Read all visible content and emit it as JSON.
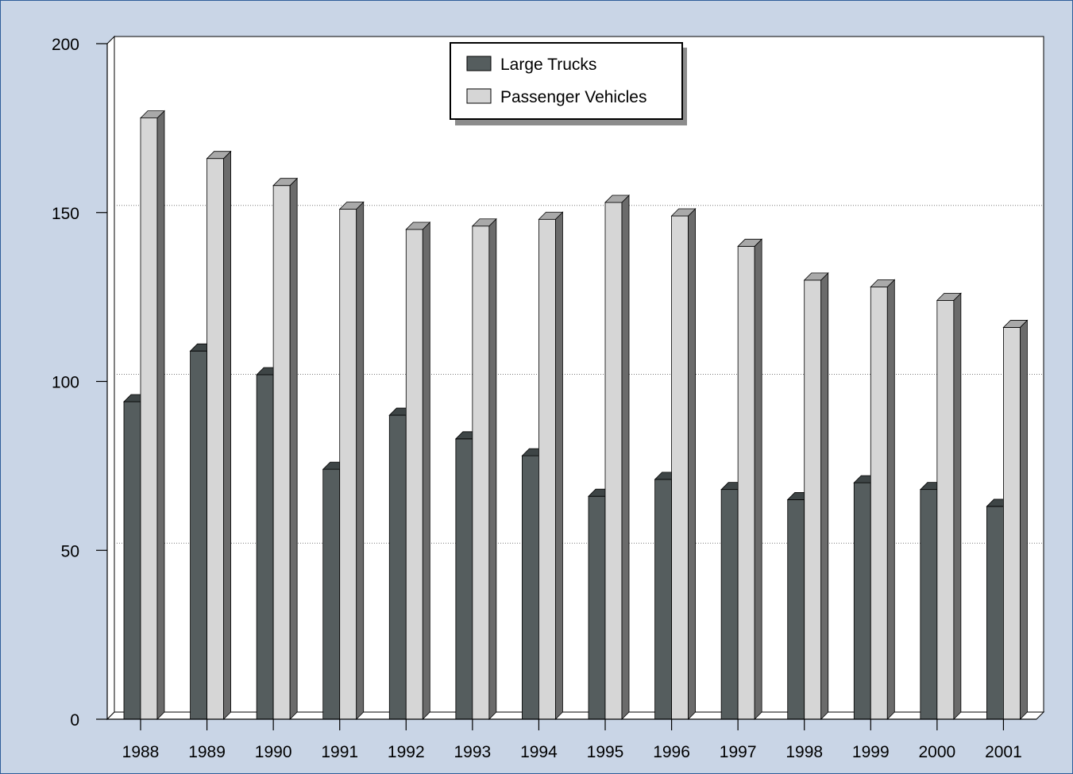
{
  "colors": {
    "background": "#c9d5e6",
    "border": "#2f5d9a",
    "plot_bg": "#ffffff",
    "axis": "#000000",
    "grid": "#7a7a7a"
  },
  "chart_data": {
    "type": "bar",
    "style": "3d-clustered",
    "categories": [
      "1988",
      "1989",
      "1990",
      "1991",
      "1992",
      "1993",
      "1994",
      "1995",
      "1996",
      "1997",
      "1998",
      "1999",
      "2000",
      "2001"
    ],
    "series": [
      {
        "name": "Large Trucks",
        "colors": {
          "front": "#555d5e",
          "top": "#3e4546",
          "side": "#2b3031"
        },
        "values": [
          94,
          109,
          102,
          74,
          90,
          83,
          78,
          66,
          71,
          68,
          65,
          70,
          68,
          63
        ]
      },
      {
        "name": "Passenger Vehicles",
        "colors": {
          "front": "#d6d6d6",
          "top": "#a9a9a9",
          "side": "#6b6b6b"
        },
        "values": [
          178,
          166,
          158,
          151,
          145,
          146,
          148,
          153,
          149,
          140,
          130,
          128,
          124,
          116
        ]
      }
    ],
    "ylim": [
      0,
      200
    ],
    "yticks": [
      0,
      50,
      100,
      150,
      200
    ],
    "title": "",
    "xlabel": "",
    "ylabel": "",
    "grid": "horizontal-dotted",
    "legend": "top-center"
  }
}
